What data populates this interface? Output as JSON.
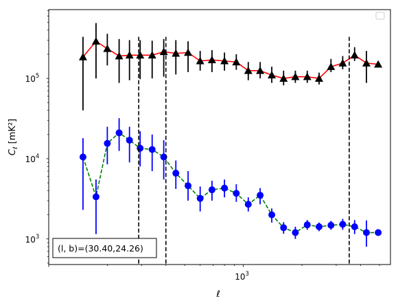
{
  "chart_data": {
    "type": "scatter",
    "x_scale": "log",
    "y_scale": "log",
    "xlim": [
      100,
      5700
    ],
    "ylim": [
      480,
      720000
    ],
    "xlabel": "ℓ",
    "ylabel": "C_ℓ [mK²]",
    "x_ticks": [
      {
        "value": 1000,
        "label": "10^3"
      }
    ],
    "y_ticks": [
      {
        "value": 1000,
        "label": "10^3"
      },
      {
        "value": 10000,
        "label": "10^4"
      },
      {
        "value": 100000,
        "label": "10^5"
      }
    ],
    "grid": false,
    "legend": "upper right (empty box)",
    "annotation": "(l, b)=(30.40,24.26)",
    "vertical_lines": [
      {
        "x": 290,
        "style": "dashed",
        "color": "#000000"
      },
      {
        "x": 400,
        "style": "dashed",
        "color": "#000000"
      },
      {
        "x": 3500,
        "style": "dashed",
        "color": "#000000"
      }
    ],
    "series": [
      {
        "marker": "triangle",
        "marker_color": "#000000",
        "line_color": "#ff0000",
        "line_style": "solid",
        "errorbar_color": "#000000",
        "x": [
          150,
          175,
          200,
          230,
          260,
          295,
          340,
          390,
          450,
          520,
          600,
          690,
          800,
          920,
          1060,
          1220,
          1400,
          1610,
          1850,
          2130,
          2450,
          2820,
          3240,
          3730,
          4290,
          4930
        ],
        "y": [
          185000,
          290000,
          235000,
          190000,
          195000,
          195000,
          195000,
          215000,
          205000,
          210000,
          165000,
          170000,
          165000,
          160000,
          125000,
          125000,
          110000,
          100000,
          105000,
          105000,
          100000,
          140000,
          155000,
          195000,
          155000,
          150000
        ],
        "yerr_low": [
          40000,
          100000,
          145000,
          88000,
          95000,
          98000,
          100000,
          105000,
          112000,
          120000,
          125000,
          120000,
          125000,
          128000,
          95000,
          100000,
          88000,
          82000,
          88000,
          88000,
          84000,
          120000,
          130000,
          165000,
          88000,
          0
        ],
        "yerr_high": [
          330000,
          490000,
          360000,
          310000,
          300000,
          300000,
          295000,
          310000,
          300000,
          290000,
          220000,
          225000,
          210000,
          200000,
          160000,
          160000,
          140000,
          125000,
          125000,
          125000,
          118000,
          175000,
          190000,
          245000,
          220000,
          0
        ]
      },
      {
        "marker": "circle",
        "marker_color": "#0000ff",
        "line_color": "#008000",
        "line_style": "dashed",
        "errorbar_color": "#0000ff",
        "x": [
          150,
          175,
          200,
          230,
          260,
          295,
          340,
          390,
          450,
          520,
          600,
          690,
          800,
          920,
          1060,
          1220,
          1400,
          1610,
          1850,
          2130,
          2450,
          2820,
          3240,
          3730,
          4290,
          4930
        ],
        "y": [
          10500,
          3350,
          15500,
          21000,
          17000,
          13500,
          13000,
          10500,
          6600,
          4600,
          3200,
          4100,
          4300,
          3700,
          2700,
          3500,
          2000,
          1380,
          1200,
          1500,
          1420,
          1480,
          1520,
          1420,
          1200,
          1200
        ],
        "yerr_low": [
          2300,
          1150,
          8500,
          12500,
          9000,
          8000,
          7000,
          5500,
          4200,
          3000,
          2200,
          3000,
          3300,
          2900,
          2200,
          2700,
          1600,
          1160,
          1000,
          1300,
          1250,
          1300,
          1300,
          1150,
          800,
          0
        ],
        "yerr_high": [
          18000,
          5500,
          25000,
          32000,
          25000,
          22000,
          20000,
          17000,
          9500,
          7000,
          4500,
          5300,
          5500,
          4800,
          3300,
          4300,
          2400,
          1620,
          1420,
          1720,
          1600,
          1680,
          1780,
          1720,
          1700,
          0
        ]
      }
    ]
  }
}
